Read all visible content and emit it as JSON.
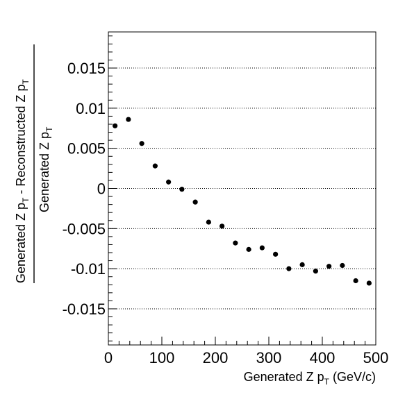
{
  "chart_data": {
    "type": "scatter",
    "xlabel_main": "Generated Z p",
    "xlabel_sub": "T",
    "xlabel_unit": " (GeV/c)",
    "ylabel_numerator": {
      "part1": "Generated Z p",
      "sub1": "T",
      "part2": " - Reconstructed Z p",
      "sub2": "T"
    },
    "ylabel_denominator": {
      "part1": "Generated Z p",
      "sub1": "T"
    },
    "xlim": [
      0,
      500
    ],
    "ylim": [
      -0.0195,
      0.0195
    ],
    "x_ticks": [
      0,
      100,
      200,
      300,
      400,
      500
    ],
    "x_tick_labels": [
      "0",
      "100",
      "200",
      "300",
      "400",
      "500"
    ],
    "y_ticks": [
      -0.015,
      -0.01,
      -0.005,
      0,
      0.005,
      0.01,
      0.015
    ],
    "y_tick_labels": [
      "-0.015",
      "-0.01",
      "-0.005",
      "0",
      "0.005",
      "0.01",
      "0.015"
    ],
    "grid": "horizontal-dotted",
    "x": [
      12.5,
      37.5,
      62.5,
      87.5,
      112.5,
      137.5,
      162.5,
      187.5,
      212.5,
      237.5,
      262.5,
      287.5,
      312.5,
      337.5,
      362.5,
      387.5,
      412.5,
      437.5,
      462.5,
      487.5
    ],
    "y": [
      0.0078,
      0.0086,
      0.0056,
      0.0028,
      0.0008,
      -0.0001,
      -0.0017,
      -0.0042,
      -0.0047,
      -0.0068,
      -0.0076,
      -0.0074,
      -0.0082,
      -0.01,
      -0.0095,
      -0.0103,
      -0.0097,
      -0.0096,
      -0.0115,
      -0.0118
    ]
  }
}
